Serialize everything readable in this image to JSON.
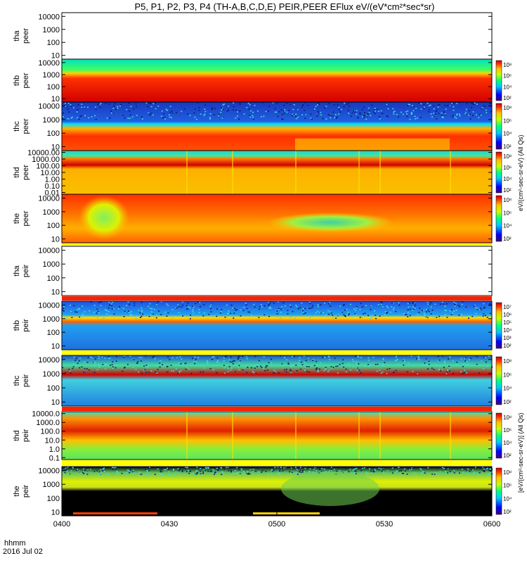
{
  "title": "P5, P1, P2, P3, P4 (TH-A,B,C,D,E) PEIR,PEER EFlux eV/(eV*cm²*sec*sr)",
  "chart_data": {
    "type": "heatmap",
    "x_axis": {
      "ticks": [
        "0400",
        "0430",
        "0500",
        "0530",
        "0600"
      ],
      "caption_line1": "hhmm",
      "caption_line2": "2016 Jul 02",
      "range": [
        "04:00",
        "06:00"
      ]
    },
    "panels": [
      {
        "id": "tha-peer",
        "ylabel1": "tha",
        "ylabel2": "peer",
        "yticks": [
          "10",
          "100",
          "1000",
          "10000"
        ],
        "data": "none",
        "colorbar": false
      },
      {
        "id": "thb-peer",
        "ylabel1": "thb",
        "ylabel2": "peer",
        "yticks": [
          "10",
          "100",
          "1000",
          "10000"
        ],
        "data": "spectrogram",
        "colorbar": true,
        "cbar_ticks": [
          "10⁸",
          "10⁶",
          "10⁴",
          "10²"
        ]
      },
      {
        "id": "thc-peer",
        "ylabel1": "thc",
        "ylabel2": "peer",
        "yticks": [
          "10",
          "100",
          "1000",
          "10000"
        ],
        "data": "spectrogram",
        "colorbar": true,
        "cbar_ticks": [
          "10⁸",
          "10⁶",
          "10⁴",
          "10²"
        ]
      },
      {
        "id": "thd-peer",
        "ylabel1": "thd",
        "ylabel2": "peer",
        "yticks": [
          "0.01",
          "0.10",
          "1.00",
          "10.00",
          "100.00",
          "1000.00",
          "10000.00"
        ],
        "data": "spectrogram",
        "colorbar": true,
        "cbar_ticks": [
          "10⁸",
          "10⁶",
          "10⁴",
          "10²"
        ]
      },
      {
        "id": "the-peer",
        "ylabel1": "the",
        "ylabel2": "peer",
        "yticks": [
          "10",
          "100",
          "1000",
          "10000"
        ],
        "data": "spectrogram",
        "colorbar": true,
        "cbar_ticks": [
          "10⁸",
          "10⁶",
          "10⁴",
          "10²"
        ]
      },
      {
        "id": "tha-peir",
        "ylabel1": "tha",
        "ylabel2": "peir",
        "yticks": [
          "10",
          "100",
          "1000",
          "10000"
        ],
        "data": "none",
        "colorbar": false
      },
      {
        "id": "thb-peir",
        "ylabel1": "thb",
        "ylabel2": "peir",
        "yticks": [
          "10",
          "100",
          "1000",
          "10000"
        ],
        "data": "spectrogram",
        "colorbar": true,
        "cbar_ticks": [
          "10⁷",
          "10⁶",
          "10⁵",
          "10⁴",
          "10³",
          "10²"
        ]
      },
      {
        "id": "thc-peir",
        "ylabel1": "thc",
        "ylabel2": "peir",
        "yticks": [
          "10",
          "100",
          "1000",
          "10000"
        ],
        "data": "spectrogram",
        "colorbar": true,
        "cbar_ticks": [
          "10⁸",
          "10⁶",
          "10⁴",
          "10²"
        ]
      },
      {
        "id": "thd-peir",
        "ylabel1": "thd",
        "ylabel2": "peir",
        "yticks": [
          "0.1",
          "1.0",
          "10.0",
          "100.0",
          "1000.0",
          "10000.0"
        ],
        "data": "spectrogram",
        "colorbar": true,
        "cbar_ticks": [
          "10⁸",
          "10⁶",
          "10⁴",
          "10²"
        ]
      },
      {
        "id": "the-peir",
        "ylabel1": "the",
        "ylabel2": "peir",
        "yticks": [
          "10",
          "100",
          "1000",
          "10000"
        ],
        "data": "spectrogram",
        "colorbar": true,
        "cbar_ticks": [
          "10⁸",
          "10⁶",
          "10⁴",
          "10²"
        ]
      }
    ],
    "colorbar_unit_peer": "eV/(cm²-sec-sr-eV) (All Qs)",
    "colorbar_unit_peir": "[eV/(cm²-sec-sr-eV)] (All Qs)",
    "colormap": "rainbow (purple-blue-cyan-green-yellow-red)"
  }
}
